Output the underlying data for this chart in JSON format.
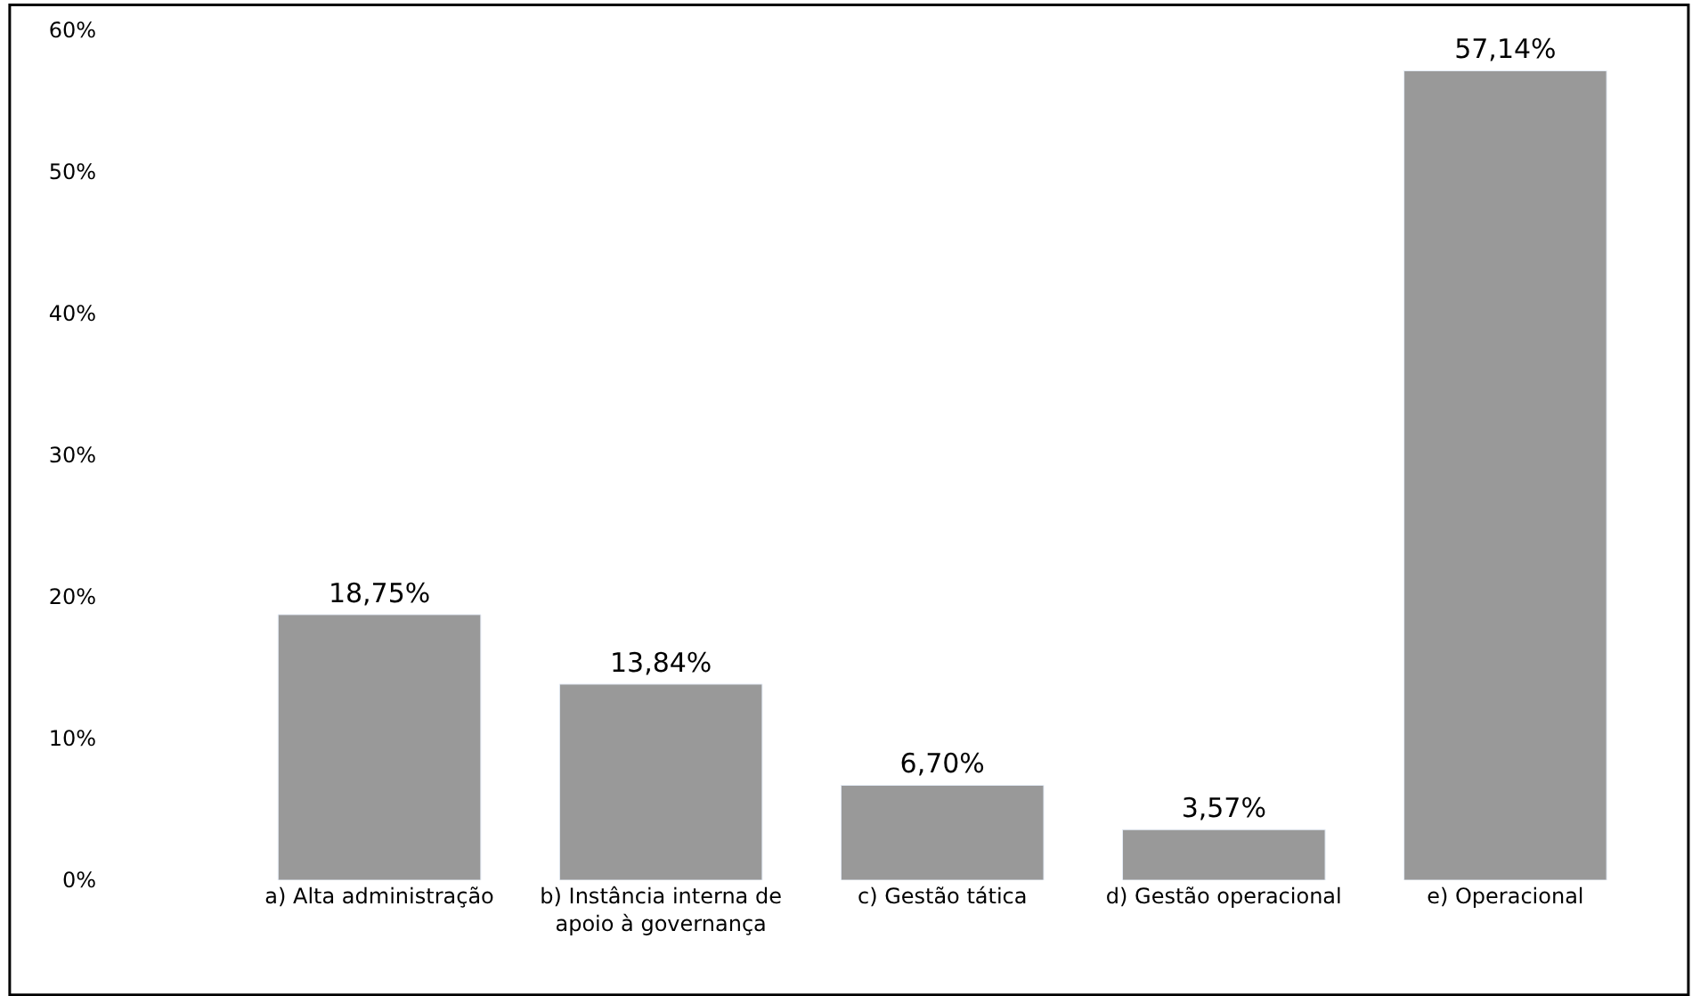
{
  "chart_data": {
    "type": "bar",
    "categories": [
      "a) Alta administração",
      "b) Instância interna de apoio à governança",
      "c) Gestão tática",
      "d) Gestão operacional",
      "e) Operacional"
    ],
    "values": [
      18.75,
      13.84,
      6.7,
      3.57,
      57.14
    ],
    "value_labels": [
      "18,75%",
      "13,84%",
      "6,70%",
      "3,57%",
      "57,14%"
    ],
    "color": "#999999",
    "ylim": [
      0,
      60
    ],
    "yticks": [
      {
        "value": 0,
        "label": "0%"
      },
      {
        "value": 10,
        "label": "10%"
      },
      {
        "value": 20,
        "label": "20%"
      },
      {
        "value": 30,
        "label": "30%"
      },
      {
        "value": 40,
        "label": "40%"
      },
      {
        "value": 50,
        "label": "50%"
      },
      {
        "value": 60,
        "label": "60%"
      }
    ]
  }
}
